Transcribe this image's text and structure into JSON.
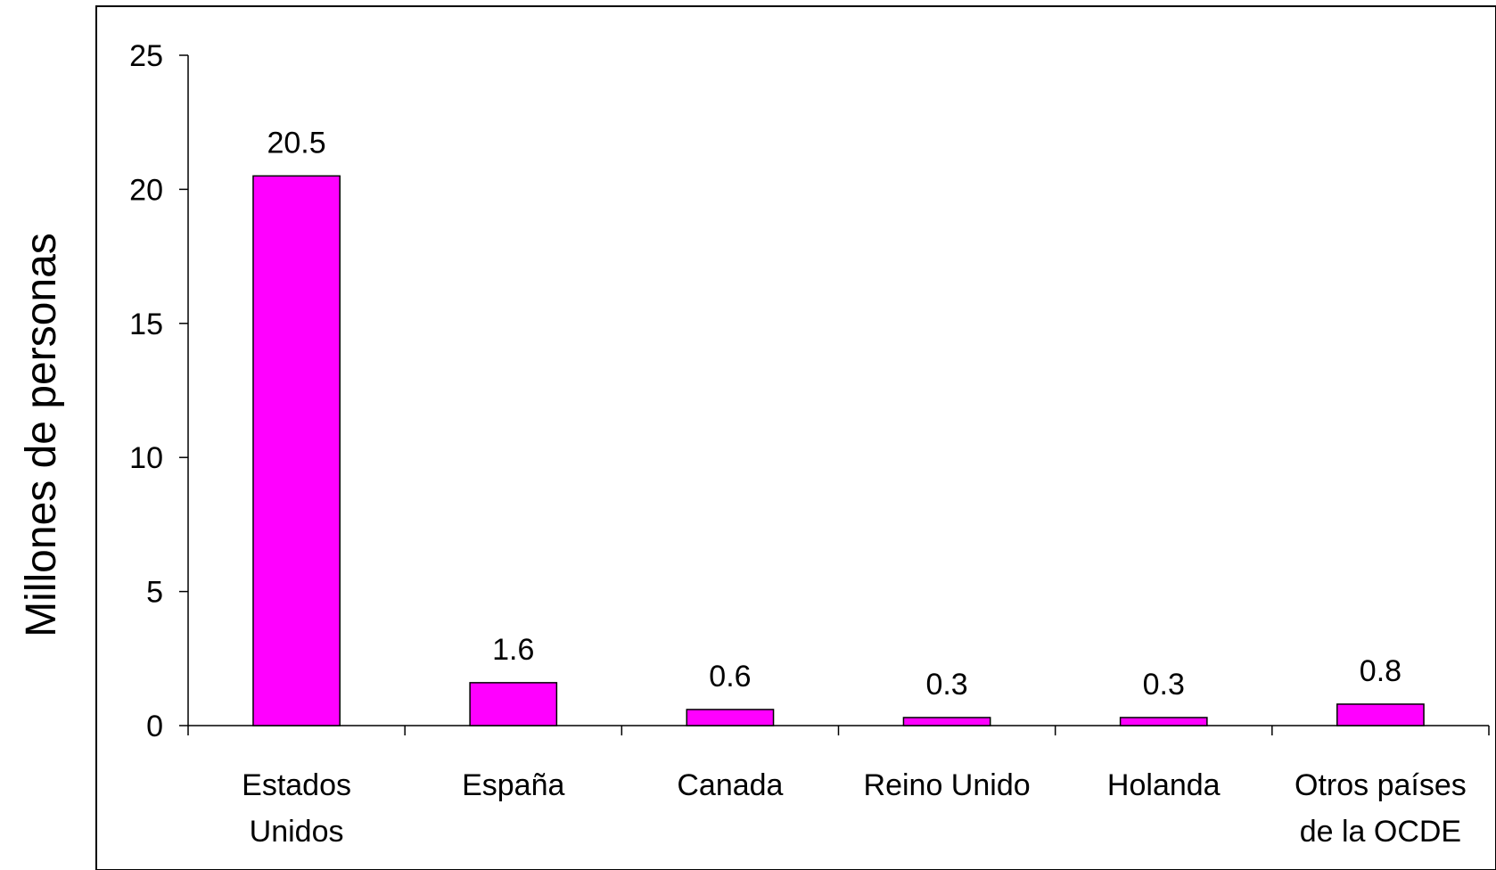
{
  "chart_data": {
    "type": "bar",
    "categories": [
      [
        "Estados",
        "Unidos"
      ],
      [
        "España"
      ],
      [
        "Canada"
      ],
      [
        "Reino Unido"
      ],
      [
        "Holanda"
      ],
      [
        "Otros países",
        "de la OCDE"
      ]
    ],
    "values": [
      20.5,
      1.6,
      0.6,
      0.3,
      0.3,
      0.8
    ],
    "data_labels": [
      "20.5",
      "1.6",
      "0.6",
      "0.3",
      "0.3",
      "0.8"
    ],
    "title": "",
    "xlabel": "",
    "ylabel": "Millones de personas",
    "ylim": [
      0,
      25
    ],
    "yticks": [
      0,
      5,
      10,
      15,
      20,
      25
    ],
    "grid": false,
    "bar_color": "#FF00FF",
    "bar_edge_color": "#000000"
  }
}
